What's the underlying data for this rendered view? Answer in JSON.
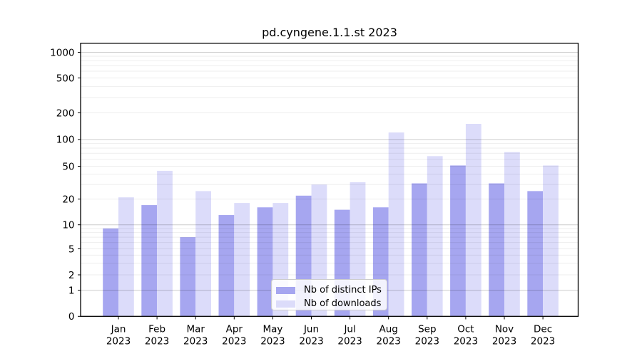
{
  "chart_data": {
    "type": "bar",
    "title": "pd.cyngene.1.1.st 2023",
    "categories": [
      "Jan",
      "Feb",
      "Mar",
      "Apr",
      "May",
      "Jun",
      "Jul",
      "Aug",
      "Sep",
      "Oct",
      "Nov",
      "Dec"
    ],
    "year_label": "2023",
    "series": [
      {
        "name": "Nb of distinct IPs",
        "color": "#a6a6f0",
        "values": [
          9,
          17,
          7,
          13,
          16,
          22,
          15,
          16,
          31,
          51,
          31,
          25
        ]
      },
      {
        "name": "Nb of downloads",
        "color": "#dcdcfa",
        "values": [
          21,
          44,
          25,
          18,
          18,
          30,
          32,
          120,
          65,
          150,
          72,
          51
        ]
      }
    ],
    "yscale": "symlog",
    "ylim": [
      0,
      1400
    ],
    "yticks": [
      0,
      1,
      2,
      5,
      10,
      20,
      50,
      100,
      200,
      500,
      1000
    ],
    "ytick_labels": [
      "0",
      "1",
      "2",
      "5",
      "10",
      "20",
      "50",
      "100",
      "200",
      "500",
      "1000"
    ],
    "grid": true,
    "legend_position": "bottom-center",
    "style": {
      "grid_major_rgba": "rgba(0,0,0,0.20)",
      "grid_minor_rgba": "rgba(0,0,0,0.065)",
      "spine_color": "#000000",
      "tick_color": "#000000",
      "background": "#ffffff"
    }
  }
}
